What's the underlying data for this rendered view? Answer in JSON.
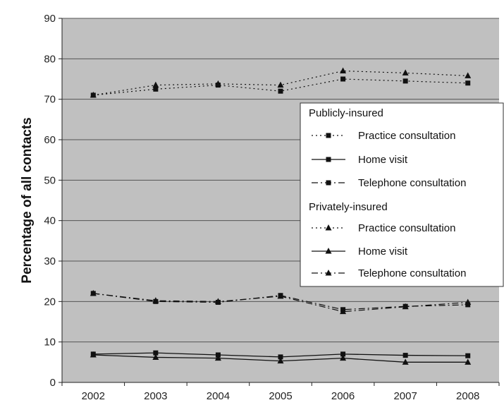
{
  "chart_data": {
    "type": "line",
    "title": "",
    "xlabel": "",
    "ylabel": "Percentage of all contacts",
    "ylim": [
      0,
      90
    ],
    "yticks": [
      0,
      10,
      20,
      30,
      40,
      50,
      60,
      70,
      80,
      90
    ],
    "grid": true,
    "legend_position": "right",
    "x": [
      "2002",
      "2003",
      "2004",
      "2005",
      "2006",
      "2007",
      "2008"
    ],
    "legend_groups": [
      "Publicly-insured",
      "Privately-insured"
    ],
    "series": [
      {
        "group": "Publicly-insured",
        "name": "Practice consultation",
        "marker": "square",
        "line": "dotted",
        "values": [
          71,
          72.5,
          73.5,
          72,
          75,
          74.5,
          74
        ]
      },
      {
        "group": "Publicly-insured",
        "name": "Home visit",
        "marker": "square",
        "line": "solid",
        "values": [
          7,
          7.3,
          6.8,
          6.3,
          7,
          6.7,
          6.6
        ]
      },
      {
        "group": "Publicly-insured",
        "name": "Telephone consultation",
        "marker": "square",
        "line": "dashdot",
        "values": [
          22,
          20,
          19.8,
          21.5,
          18,
          18.8,
          19.2
        ]
      },
      {
        "group": "Privately-insured",
        "name": "Practice consultation",
        "marker": "triangle",
        "line": "dotted",
        "values": [
          71,
          73.5,
          73.8,
          73.5,
          77,
          76.5,
          75.8
        ]
      },
      {
        "group": "Privately-insured",
        "name": "Home visit",
        "marker": "triangle",
        "line": "solid",
        "values": [
          6.8,
          6.2,
          6,
          5.3,
          6,
          5,
          5
        ]
      },
      {
        "group": "Privately-insured",
        "name": "Telephone consultation",
        "marker": "triangle",
        "line": "dashdot",
        "values": [
          22,
          20.2,
          20,
          21.3,
          17.5,
          18.7,
          19.8
        ]
      }
    ],
    "colors": {
      "plot_background": "#c0c0c0",
      "grid": "#555555",
      "lines": "#111111",
      "legend_background": "#ffffff"
    }
  }
}
